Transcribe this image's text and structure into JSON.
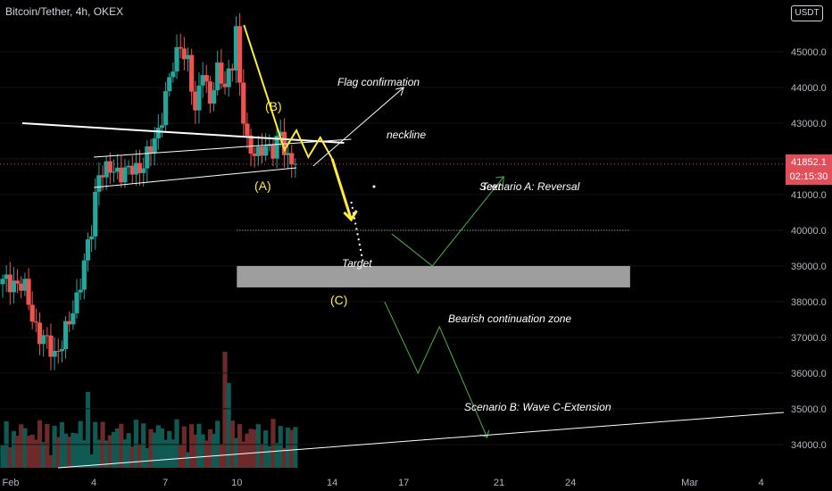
{
  "title": "Bitcoin/Tether, 4h, OKEX",
  "currency_button": "USDT",
  "current_price": {
    "value": 41852.1,
    "label": "41852.1",
    "countdown": "02:15:30"
  },
  "annotations": {
    "flag": "Flag confirmation",
    "neckline": "neckline",
    "wave_b": "(B)",
    "wave_a": "(A)",
    "wave_c": "(C)",
    "scenario_a": "Scenario A: Reversal",
    "scenario_a_overlap": "Text",
    "target": "Target",
    "bearish_zone": "Bearish continuation zone",
    "scenario_b": "Scenario B: Wave C-Extension"
  },
  "colors": {
    "background": "#000000",
    "up": "#26a69a",
    "down": "#ef5350",
    "yellow": "#ffeb3b",
    "green_path": "#4caf50",
    "white": "#ffffff",
    "zone": "#9e9e9e",
    "price_line": "#e04f5a"
  },
  "chart_data": {
    "type": "candlestick",
    "title": "Bitcoin/Tether, 4h, OKEX",
    "y_axis": {
      "range": [
        33400,
        46200
      ],
      "ticks": [
        34000,
        35000,
        36000,
        37000,
        38000,
        39000,
        40000,
        41000,
        42000,
        43000,
        44000,
        45000
      ],
      "tick_labels": [
        "34000.0",
        "35000.0",
        "36000.0",
        "37000.0",
        "38000.0",
        "39000.0",
        "40000.0",
        "41000.0",
        "42000.0",
        "43000.0",
        "44000.0",
        "45000.0"
      ]
    },
    "x_axis": {
      "tick_labels": [
        "Feb",
        "4",
        "7",
        "10",
        "14",
        "17",
        "21",
        "24",
        "Mar",
        "4"
      ],
      "tick_days": [
        1,
        4,
        7,
        10,
        14,
        17,
        21,
        24,
        29,
        32
      ]
    },
    "candle_anchor_closes": [
      [
        0,
        38500
      ],
      [
        3,
        38600
      ],
      [
        6,
        38300
      ],
      [
        10,
        37000
      ],
      [
        14,
        36600
      ],
      [
        16,
        36800
      ],
      [
        18,
        37400
      ],
      [
        20,
        38200
      ],
      [
        22,
        39000
      ],
      [
        24,
        40000
      ],
      [
        25,
        41000
      ],
      [
        26,
        41700
      ],
      [
        28,
        41600
      ],
      [
        31,
        41700
      ],
      [
        34,
        41600
      ],
      [
        37,
        41800
      ],
      [
        40,
        42200
      ],
      [
        42,
        42800
      ],
      [
        44,
        43800
      ],
      [
        46,
        44500
      ],
      [
        48,
        45300
      ],
      [
        50,
        44700
      ],
      [
        52,
        43200
      ],
      [
        54,
        44700
      ],
      [
        56,
        43500
      ],
      [
        58,
        44400
      ],
      [
        60,
        44200
      ],
      [
        62,
        44600
      ],
      [
        63,
        45500
      ],
      [
        64,
        44000
      ],
      [
        65,
        43300
      ],
      [
        66,
        42600
      ],
      [
        67,
        42200
      ],
      [
        69,
        42000
      ],
      [
        71,
        42500
      ],
      [
        73,
        42200
      ],
      [
        75,
        42600
      ],
      [
        77,
        42100
      ],
      [
        79,
        41900
      ]
    ],
    "volume_bars": 80,
    "annotations": [
      {
        "kind": "neckline",
        "from": [
          1,
          43000
        ],
        "to": [
          14.5,
          42450
        ]
      },
      {
        "kind": "flag_channel",
        "upper": [
          [
            4,
            42050
          ],
          [
            14.8,
            42550
          ]
        ],
        "lower": [
          [
            4,
            41200
          ],
          [
            12.5,
            41750
          ]
        ]
      },
      {
        "kind": "abc_zigzag",
        "points": [
          [
            10.3,
            45750
          ],
          [
            12,
            42250
          ],
          [
            12.5,
            42800
          ],
          [
            13,
            42050
          ],
          [
            13.5,
            42600
          ],
          [
            14,
            42000
          ]
        ]
      },
      {
        "kind": "projection_arrow",
        "from": [
          14,
          42000
        ],
        "to": [
          14.8,
          40300
        ]
      },
      {
        "kind": "dotted_target_line",
        "from": [
          14.8,
          40800
        ],
        "to": [
          15.5,
          38400
        ]
      },
      {
        "kind": "flag_arrow",
        "from": [
          13.2,
          41800
        ],
        "to": [
          17,
          44000
        ]
      },
      {
        "kind": "level_line",
        "value": 40000,
        "from_day": 10,
        "to_day": 26.5
      },
      {
        "kind": "target_zone",
        "from_value": 38400,
        "to_value": 39000,
        "from_day": 10,
        "to_day": 26.5
      },
      {
        "kind": "scenario_a_path",
        "points": [
          [
            16.5,
            39900
          ],
          [
            18.2,
            39000
          ],
          [
            21.2,
            41500
          ]
        ]
      },
      {
        "kind": "scenario_b_path",
        "points": [
          [
            16.2,
            38000
          ],
          [
            17.6,
            36000
          ],
          [
            18.5,
            37300
          ],
          [
            20.5,
            34200
          ]
        ]
      },
      {
        "kind": "volume_trendline",
        "from": [
          2,
          33600
        ],
        "to": [
          35,
          34900
        ]
      }
    ]
  }
}
